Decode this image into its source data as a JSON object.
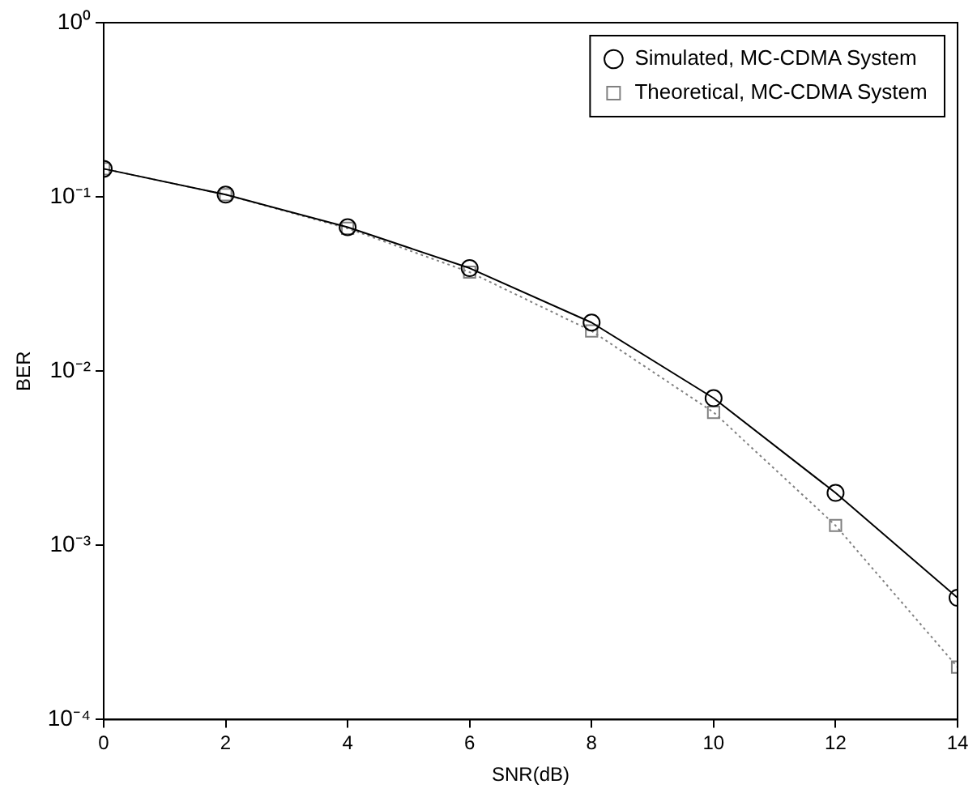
{
  "chart_data": {
    "type": "line",
    "xlabel": "SNR(dB)",
    "ylabel": "BER",
    "x": [
      0,
      2,
      4,
      6,
      8,
      10,
      12,
      14
    ],
    "series": [
      {
        "name": "Simulated, MC-CDMA System",
        "color": "#000000",
        "marker": "circle",
        "line_style": "solid",
        "values": [
          0.145,
          0.103,
          0.067,
          0.039,
          0.019,
          0.007,
          0.002,
          0.0005
        ]
      },
      {
        "name": "Theoretical, MC-CDMA System",
        "color": "#808080",
        "marker": "square",
        "line_style": "dotted",
        "values": [
          0.145,
          0.103,
          0.066,
          0.037,
          0.017,
          0.0058,
          0.0013,
          0.0002
        ]
      }
    ],
    "xlim": [
      0,
      14
    ],
    "xticks": [
      0,
      2,
      4,
      6,
      8,
      10,
      12,
      14
    ],
    "log": "y",
    "ylim": [
      0.0001,
      1
    ],
    "yticks": [
      {
        "value": 0.0001,
        "label": "10⁻⁴"
      },
      {
        "value": 0.001,
        "label": "10⁻³"
      },
      {
        "value": 0.01,
        "label": "10⁻²"
      },
      {
        "value": 0.1,
        "label": "10⁻¹"
      },
      {
        "value": 1,
        "label": "10⁰"
      }
    ],
    "grid": false,
    "legend": "top right"
  }
}
